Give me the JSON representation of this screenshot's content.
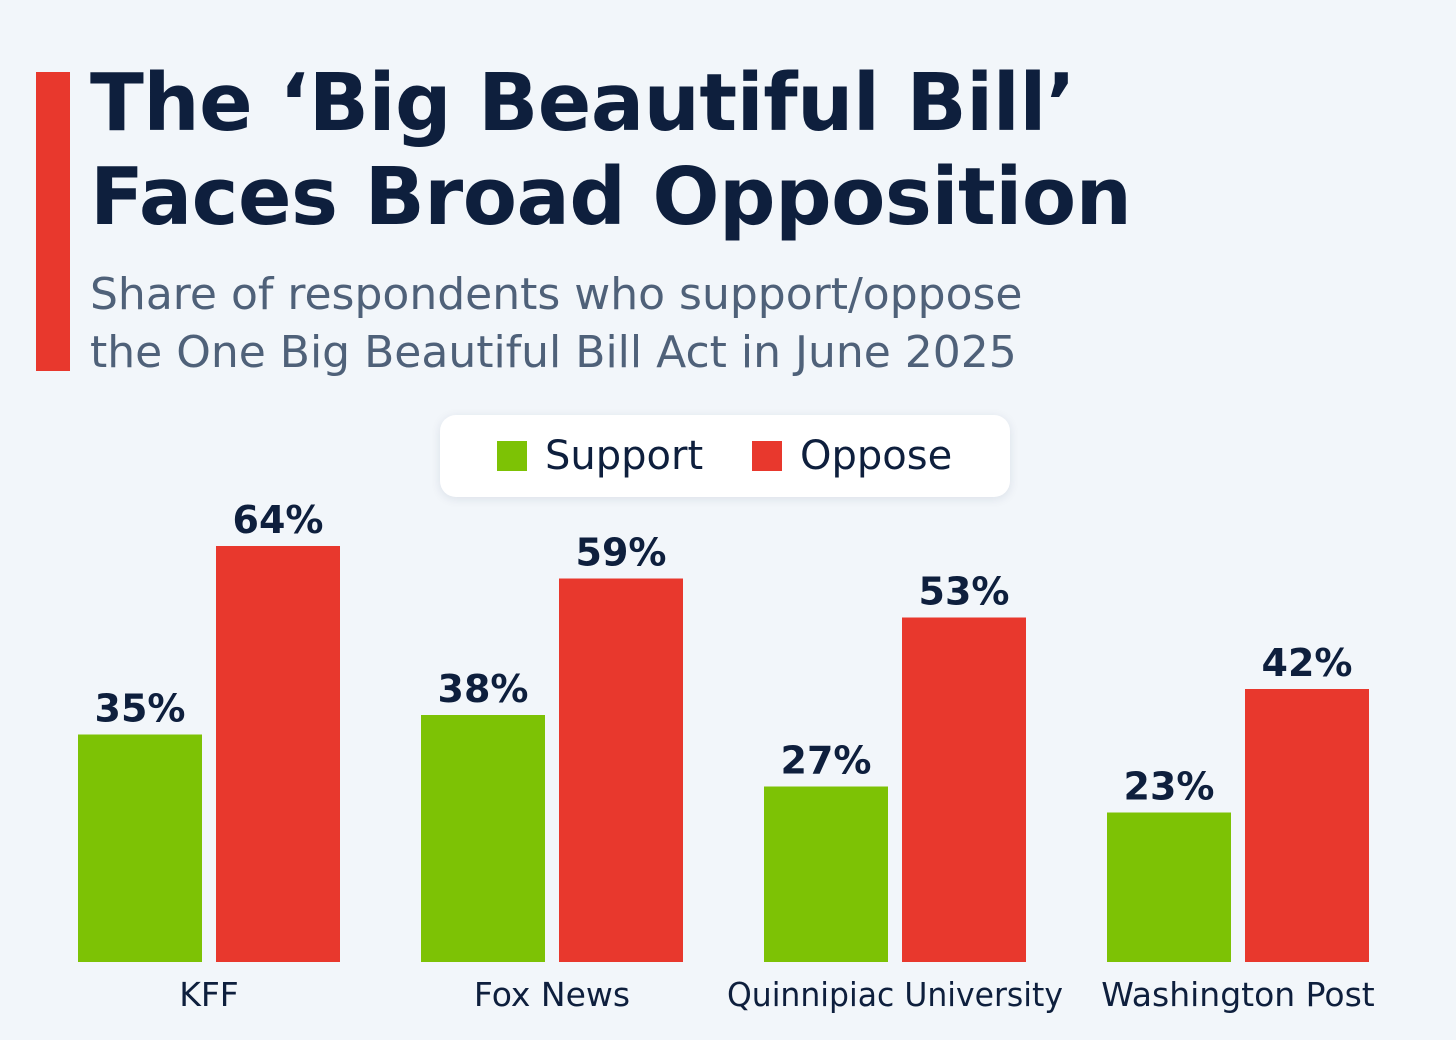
{
  "colors": {
    "support": "#7dc205",
    "oppose": "#e8382d",
    "accent": "#e8382d",
    "title": "#0e1f3d",
    "label": "#0e1f3d"
  },
  "title_lines": [
    "The ‘Big Beautiful Bill’",
    "Faces Broad Opposition"
  ],
  "subtitle_lines": [
    "Share of respondents who support/oppose",
    "the One Big Beautiful Bill Act in June 2025"
  ],
  "legend": {
    "support": "Support",
    "oppose": "Oppose"
  },
  "chart_data": {
    "type": "bar",
    "title": "The ‘Big Beautiful Bill’ Faces Broad Opposition",
    "subtitle": "Share of respondents who support/oppose the One Big Beautiful Bill Act in June 2025",
    "categories": [
      "KFF",
      "Fox News",
      "Quinnipiac University",
      "Washington Post"
    ],
    "series": [
      {
        "name": "Support",
        "values": [
          35,
          38,
          27,
          23
        ],
        "labels": [
          "35%",
          "38%",
          "27%",
          "23%"
        ]
      },
      {
        "name": "Oppose",
        "values": [
          64,
          59,
          53,
          42
        ],
        "labels": [
          "64%",
          "59%",
          "53%",
          "42%"
        ]
      }
    ],
    "xlabel": "",
    "ylabel": "",
    "ylim": [
      0,
      100
    ],
    "grid": false,
    "legend_position": "top-center"
  }
}
